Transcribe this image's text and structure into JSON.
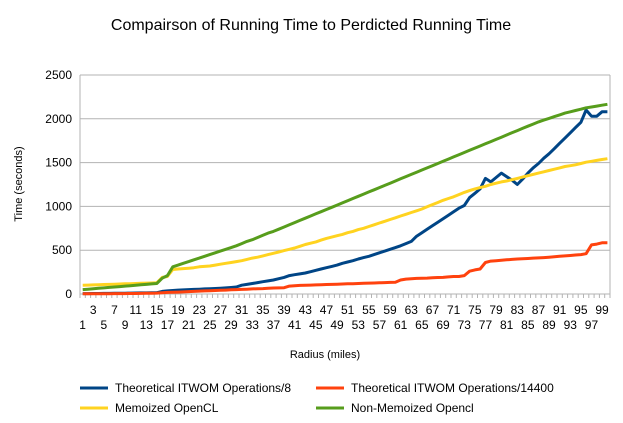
{
  "chart_data": {
    "type": "line",
    "title": "Compairson of Running Time to Perdicted Running Time",
    "xlabel": "Radius (miles)",
    "ylabel": "Time (seconds)",
    "ylim": [
      0,
      2500
    ],
    "yticks": [
      0,
      500,
      1000,
      1500,
      2000,
      2500
    ],
    "grid": true,
    "legend_position": "bottom",
    "categories": [
      1,
      2,
      3,
      4,
      5,
      6,
      7,
      8,
      9,
      10,
      11,
      12,
      13,
      14,
      15,
      16,
      17,
      18,
      19,
      20,
      21,
      22,
      23,
      24,
      25,
      26,
      27,
      28,
      29,
      30,
      31,
      32,
      33,
      34,
      35,
      36,
      37,
      38,
      39,
      40,
      41,
      42,
      43,
      44,
      45,
      46,
      47,
      48,
      49,
      50,
      51,
      52,
      53,
      54,
      55,
      56,
      57,
      58,
      59,
      60,
      61,
      62,
      63,
      64,
      65,
      66,
      67,
      68,
      69,
      70,
      71,
      72,
      73,
      74,
      75,
      76,
      77,
      78,
      79,
      80,
      81,
      82,
      83,
      84,
      85,
      86,
      87,
      88,
      89,
      90,
      91,
      92,
      93,
      94,
      95,
      96,
      97,
      98,
      99,
      100
    ],
    "xtick_labels_bottom": [
      "1",
      "5",
      "9",
      "13",
      "17",
      "21",
      "25",
      "29",
      "33",
      "37",
      "41",
      "45",
      "49",
      "53",
      "57",
      "61",
      "65",
      "69",
      "73",
      "77",
      "81",
      "85",
      "89",
      "93",
      "97"
    ],
    "xtick_labels_top": [
      "3",
      "7",
      "11",
      "15",
      "19",
      "23",
      "27",
      "31",
      "35",
      "39",
      "43",
      "47",
      "51",
      "55",
      "59",
      "63",
      "67",
      "71",
      "75",
      "79",
      "83",
      "87",
      "91",
      "95",
      "99"
    ],
    "series": [
      {
        "name": "Theoretical ITWOM Operations/8",
        "color": "#004586",
        "values": [
          5,
          5,
          6,
          6,
          7,
          7,
          8,
          8,
          9,
          10,
          11,
          12,
          13,
          14,
          15,
          30,
          35,
          40,
          45,
          47,
          50,
          52,
          55,
          58,
          60,
          63,
          66,
          70,
          74,
          80,
          100,
          110,
          120,
          130,
          140,
          150,
          160,
          175,
          190,
          210,
          220,
          230,
          240,
          255,
          270,
          285,
          300,
          315,
          330,
          350,
          365,
          380,
          400,
          415,
          430,
          450,
          470,
          490,
          510,
          530,
          550,
          575,
          600,
          660,
          700,
          740,
          780,
          820,
          860,
          900,
          940,
          980,
          1010,
          1100,
          1150,
          1200,
          1320,
          1280,
          1330,
          1380,
          1340,
          1300,
          1250,
          1310,
          1380,
          1440,
          1490,
          1550,
          1600,
          1660,
          1720,
          1780,
          1840,
          1900,
          1960,
          2100,
          2030,
          2030,
          2080,
          2080
        ]
      },
      {
        "name": "Theoretical ITWOM Operations/14400",
        "color": "#ff420e",
        "values": [
          2,
          2,
          2,
          2,
          3,
          3,
          4,
          4,
          5,
          6,
          6,
          7,
          8,
          9,
          10,
          15,
          18,
          20,
          22,
          24,
          27,
          30,
          33,
          35,
          38,
          40,
          42,
          45,
          48,
          50,
          52,
          55,
          58,
          60,
          62,
          65,
          68,
          70,
          72,
          90,
          95,
          98,
          100,
          102,
          104,
          106,
          108,
          110,
          112,
          114,
          116,
          118,
          120,
          122,
          124,
          126,
          128,
          130,
          132,
          135,
          160,
          170,
          175,
          178,
          180,
          182,
          185,
          188,
          190,
          195,
          200,
          200,
          210,
          260,
          275,
          285,
          360,
          375,
          380,
          385,
          390,
          395,
          400,
          402,
          405,
          410,
          412,
          415,
          420,
          425,
          430,
          435,
          440,
          445,
          450,
          460,
          560,
          570,
          585,
          585
        ]
      },
      {
        "name": "Memoized OpenCL",
        "color": "#ffd320",
        "values": [
          100,
          102,
          104,
          106,
          108,
          110,
          112,
          114,
          116,
          118,
          120,
          122,
          124,
          126,
          128,
          190,
          200,
          280,
          285,
          290,
          295,
          300,
          310,
          315,
          320,
          330,
          340,
          350,
          360,
          370,
          380,
          395,
          410,
          420,
          435,
          450,
          465,
          480,
          495,
          510,
          525,
          545,
          565,
          580,
          595,
          615,
          635,
          650,
          665,
          680,
          700,
          715,
          735,
          750,
          770,
          790,
          810,
          830,
          850,
          870,
          890,
          910,
          930,
          950,
          970,
          995,
          1020,
          1045,
          1070,
          1090,
          1110,
          1135,
          1160,
          1180,
          1200,
          1215,
          1230,
          1250,
          1265,
          1280,
          1290,
          1305,
          1320,
          1335,
          1350,
          1365,
          1380,
          1395,
          1410,
          1425,
          1440,
          1455,
          1465,
          1475,
          1490,
          1505,
          1515,
          1525,
          1535,
          1545
        ]
      },
      {
        "name": "Non-Memoized Opencl",
        "color": "#579d1c",
        "values": [
          50,
          55,
          60,
          65,
          70,
          75,
          80,
          85,
          90,
          95,
          100,
          105,
          110,
          115,
          120,
          180,
          210,
          310,
          330,
          350,
          370,
          390,
          410,
          430,
          450,
          470,
          490,
          510,
          530,
          550,
          575,
          600,
          620,
          645,
          670,
          695,
          715,
          740,
          765,
          790,
          815,
          840,
          865,
          890,
          915,
          940,
          965,
          990,
          1015,
          1040,
          1065,
          1090,
          1115,
          1140,
          1165,
          1190,
          1215,
          1240,
          1265,
          1290,
          1315,
          1340,
          1365,
          1390,
          1415,
          1440,
          1465,
          1490,
          1515,
          1540,
          1565,
          1590,
          1615,
          1640,
          1665,
          1690,
          1715,
          1740,
          1765,
          1790,
          1815,
          1840,
          1865,
          1890,
          1915,
          1940,
          1965,
          1985,
          2005,
          2025,
          2045,
          2065,
          2080,
          2095,
          2110,
          2125,
          2135,
          2145,
          2155,
          2165
        ]
      }
    ]
  }
}
